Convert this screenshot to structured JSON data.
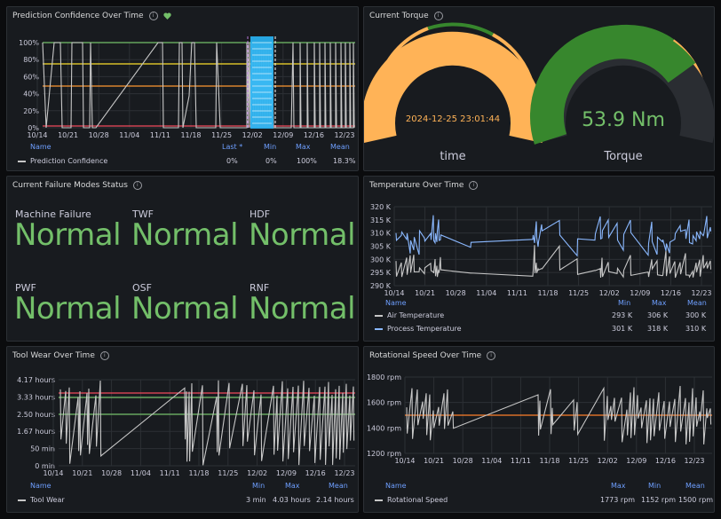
{
  "panels": {
    "prediction": {
      "title": "Prediction Confidence Over Time",
      "yticks": [
        "100%",
        "80%",
        "60%",
        "40%",
        "20%",
        "0%"
      ],
      "xticks": [
        "10/14",
        "10/21",
        "10/28",
        "11/04",
        "11/11",
        "11/18",
        "11/25",
        "12/02",
        "12/09",
        "12/16",
        "12/23"
      ],
      "legend_headers": {
        "name": "Name",
        "last": "Last *",
        "min": "Min",
        "max": "Max",
        "mean": "Mean"
      },
      "series": [
        {
          "name": "Prediction Confidence",
          "last": "0%",
          "min": "0%",
          "max": "100%",
          "mean": "18.3%"
        }
      ],
      "thresholds": {
        "green": "#73bf69",
        "yellow": "#fade2a",
        "orange": "#ff9830",
        "red": "#f2495c"
      }
    },
    "torque": {
      "title": "Current Torque",
      "time_value": "2024-12-25 23:01:44",
      "time_label": "time",
      "torque_value": "53.9 Nm",
      "torque_label": "Torque",
      "colors": {
        "orange": "#ffb357",
        "green": "#37872d",
        "gray": "#c7c7c7"
      }
    },
    "failure": {
      "title": "Current Failure Modes Status",
      "modes": [
        {
          "label": "Machine Failure",
          "value": "Normal"
        },
        {
          "label": "TWF",
          "value": "Normal"
        },
        {
          "label": "HDF",
          "value": "Normal"
        },
        {
          "label": "PWF",
          "value": "Normal"
        },
        {
          "label": "OSF",
          "value": "Normal"
        },
        {
          "label": "RNF",
          "value": "Normal"
        }
      ],
      "status_color": "#73bf69"
    },
    "temperature": {
      "title": "Temperature Over Time",
      "yticks": [
        "320 K",
        "315 K",
        "310 K",
        "305 K",
        "300 K",
        "295 K",
        "290 K"
      ],
      "xticks": [
        "10/14",
        "10/21",
        "10/28",
        "11/04",
        "11/11",
        "11/18",
        "11/25",
        "12/02",
        "12/09",
        "12/16",
        "12/23"
      ],
      "legend_headers": {
        "name": "Name",
        "min": "Min",
        "max": "Max",
        "mean": "Mean"
      },
      "series": [
        {
          "name": "Air Temperature",
          "min": "293 K",
          "max": "306 K",
          "mean": "300 K",
          "color": "#c7c7c7"
        },
        {
          "name": "Process Temperature",
          "min": "301 K",
          "max": "318 K",
          "mean": "310 K",
          "color": "#8ab8ff"
        }
      ]
    },
    "toolwear": {
      "title": "Tool Wear Over Time",
      "yticks": [
        "4.17 hours",
        "3.33 hours",
        "2.50 hours",
        "1.67 hours",
        "50 min",
        "0 min"
      ],
      "xticks": [
        "10/14",
        "10/21",
        "10/28",
        "11/04",
        "11/11",
        "11/18",
        "11/25",
        "12/02",
        "12/09",
        "12/16",
        "12/23"
      ],
      "legend_headers": {
        "name": "Name",
        "min": "Min",
        "max": "Max",
        "mean": "Mean"
      },
      "series": [
        {
          "name": "Tool Wear",
          "min": "3 min",
          "max": "4.03 hours",
          "mean": "2.14 hours"
        }
      ]
    },
    "speed": {
      "title": "Rotational Speed Over Time",
      "yticks": [
        "1800 rpm",
        "1600 rpm",
        "1400 rpm",
        "1200 rpm"
      ],
      "xticks": [
        "10/14",
        "10/21",
        "10/28",
        "11/04",
        "11/11",
        "11/18",
        "11/25",
        "12/02",
        "12/09",
        "12/16",
        "12/23"
      ],
      "legend_headers": {
        "name": "Name",
        "max": "Max",
        "min": "Min",
        "mean": "Mean"
      },
      "series": [
        {
          "name": "Rotational Speed",
          "max": "1773 rpm",
          "min": "1152 rpm",
          "mean": "1500 rpm"
        }
      ]
    }
  }
}
